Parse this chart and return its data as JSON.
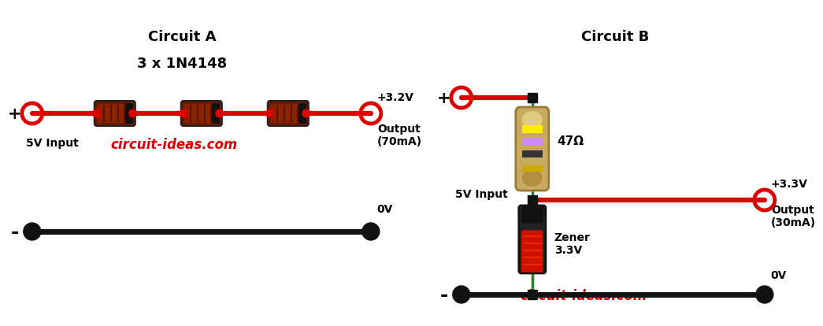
{
  "fig_width": 10.07,
  "fig_height": 3.95,
  "bg_color": "#ffffff",
  "circuit_a": {
    "title": "Circuit A",
    "label_diodes": "3 x 1N4148",
    "label_input": "5V Input",
    "label_output": "+3.2V",
    "label_output2": "Output\n(70mA)",
    "label_gnd": "0V",
    "website": "circuit-ideas.com"
  },
  "circuit_b": {
    "title": "Circuit B",
    "label_resistor": "47Ω",
    "label_zener": "Zener\n3.3V",
    "label_input": "5V Input",
    "label_output": "+3.3V",
    "label_output2": "Output\n(30mA)",
    "label_gnd": "0V",
    "website": "circuit-ideas.com"
  },
  "colors": {
    "red_wire": "#dd0000",
    "black_wire": "#111111",
    "green_wire": "#228822",
    "website_color": "#dd0000",
    "title_color": "#000000",
    "red_node": "#dd0000",
    "black_node": "#111111"
  }
}
